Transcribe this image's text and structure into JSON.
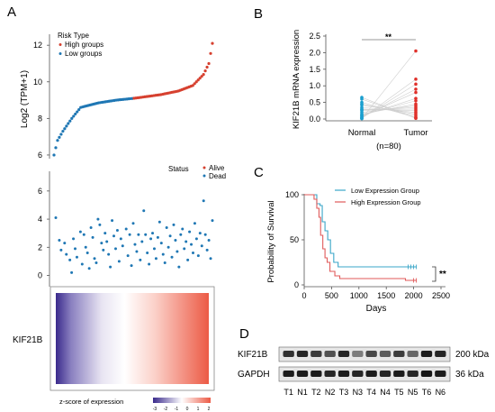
{
  "panels": {
    "A": "A",
    "B": "B",
    "C": "C",
    "D": "D"
  },
  "colors": {
    "high": "#d6402f",
    "low": "#1f77b4",
    "normal_dot": "#1a9fcf",
    "tumor_dot": "#e0302a",
    "heat_low": "#3a2a8c",
    "heat_mid": "#ffffff",
    "heat_high": "#ec5a45",
    "surv_low": "#3aa6c8",
    "surv_high": "#e05a5a"
  },
  "chart_data": [
    {
      "type": "scatter",
      "panel": "A-top",
      "ylabel": "Log2 (TPM+1)",
      "yticks": [
        6,
        8,
        10,
        12
      ],
      "ylim": [
        5.8,
        12.6
      ],
      "legend_title": "Risk Type",
      "legend": [
        "High groups",
        "Low groups"
      ],
      "n": 90,
      "split_index": 45,
      "anchors": [
        [
          0,
          6.0
        ],
        [
          2,
          6.8
        ],
        [
          5,
          7.3
        ],
        [
          10,
          8.0
        ],
        [
          15,
          8.6
        ],
        [
          25,
          8.85
        ],
        [
          35,
          9.0
        ],
        [
          45,
          9.1
        ],
        [
          60,
          9.3
        ],
        [
          70,
          9.5
        ],
        [
          78,
          9.8
        ],
        [
          84,
          10.4
        ],
        [
          87,
          11.0
        ],
        [
          89,
          12.1
        ]
      ]
    },
    {
      "type": "scatter",
      "panel": "A-middle",
      "legend_title": "Status",
      "legend": [
        "Alive",
        "Dead"
      ],
      "yticks": [
        0,
        2,
        4,
        6
      ],
      "ylim": [
        -0.8,
        7.4
      ],
      "points": [
        [
          0,
          4.1
        ],
        [
          2,
          2.5
        ],
        [
          3,
          1.8
        ],
        [
          5,
          2.3
        ],
        [
          6,
          1.5
        ],
        [
          8,
          1.1
        ],
        [
          9,
          0.2
        ],
        [
          10,
          2.6
        ],
        [
          11,
          1.9
        ],
        [
          12,
          1.3
        ],
        [
          14,
          3.1
        ],
        [
          15,
          0.8
        ],
        [
          16,
          2.9
        ],
        [
          17,
          2.0
        ],
        [
          18,
          1.6
        ],
        [
          19,
          0.5
        ],
        [
          20,
          3.4
        ],
        [
          21,
          2.7
        ],
        [
          22,
          1.2
        ],
        [
          23,
          0.9
        ],
        [
          24,
          4.0
        ],
        [
          25,
          3.6
        ],
        [
          26,
          2.3
        ],
        [
          27,
          1.8
        ],
        [
          28,
          3.0
        ],
        [
          29,
          2.4
        ],
        [
          30,
          1.5
        ],
        [
          31,
          0.6
        ],
        [
          32,
          3.9
        ],
        [
          33,
          2.8
        ],
        [
          34,
          1.9
        ],
        [
          35,
          3.2
        ],
        [
          36,
          1.0
        ],
        [
          37,
          2.6
        ],
        [
          38,
          2.1
        ],
        [
          40,
          3.3
        ],
        [
          41,
          1.4
        ],
        [
          42,
          2.9
        ],
        [
          43,
          0.7
        ],
        [
          44,
          3.7
        ],
        [
          45,
          2.2
        ],
        [
          46,
          1.7
        ],
        [
          47,
          2.9
        ],
        [
          48,
          1.1
        ],
        [
          49,
          2.4
        ],
        [
          50,
          4.6
        ],
        [
          51,
          2.9
        ],
        [
          52,
          1.6
        ],
        [
          53,
          0.8
        ],
        [
          54,
          2.6
        ],
        [
          55,
          3.0
        ],
        [
          56,
          1.9
        ],
        [
          57,
          1.2
        ],
        [
          58,
          2.7
        ],
        [
          59,
          3.8
        ],
        [
          60,
          2.3
        ],
        [
          61,
          1.5
        ],
        [
          62,
          0.9
        ],
        [
          63,
          3.4
        ],
        [
          64,
          2.0
        ],
        [
          65,
          2.8
        ],
        [
          66,
          1.3
        ],
        [
          67,
          3.6
        ],
        [
          68,
          2.5
        ],
        [
          69,
          1.7
        ],
        [
          70,
          0.6
        ],
        [
          71,
          2.9
        ],
        [
          72,
          3.3
        ],
        [
          73,
          1.9
        ],
        [
          74,
          2.4
        ],
        [
          75,
          1.1
        ],
        [
          76,
          3.1
        ],
        [
          77,
          2.2
        ],
        [
          78,
          1.6
        ],
        [
          79,
          3.7
        ],
        [
          80,
          2.6
        ],
        [
          81,
          1.4
        ],
        [
          82,
          3.0
        ],
        [
          83,
          2.1
        ],
        [
          84,
          5.3
        ],
        [
          85,
          2.9
        ],
        [
          86,
          1.8
        ],
        [
          87,
          2.5
        ],
        [
          88,
          1.2
        ],
        [
          89,
          3.9
        ]
      ]
    },
    {
      "type": "heatmap",
      "panel": "A-bottom",
      "row_label": "KIF21B",
      "colorbar_title": "z-score of expression",
      "colorbar_ticks": [
        "-3",
        "-2",
        "-1",
        "0",
        "1",
        "2"
      ]
    },
    {
      "type": "scatter",
      "panel": "B",
      "ylabel": "KIF21B mRNA expression",
      "categories": [
        "Normal",
        "Tumor"
      ],
      "xcaption": "(n=80)",
      "yticks": [
        "0.0",
        "0.5",
        "1.0",
        "1.5",
        "2.0",
        "2.5"
      ],
      "ylim": [
        0,
        2.5
      ],
      "significance": "**",
      "normal": [
        0.65,
        0.6,
        0.5,
        0.45,
        0.42,
        0.35,
        0.3,
        0.28,
        0.25,
        0.2,
        0.15,
        0.12,
        0.1,
        0.08,
        0.05,
        0.03,
        0.02,
        0.01
      ],
      "tumor": [
        2.05,
        1.2,
        1.05,
        0.9,
        0.8,
        0.62,
        0.55,
        0.45,
        0.4,
        0.35,
        0.3,
        0.25,
        0.2,
        0.15,
        0.1,
        0.05,
        0.03,
        0.02
      ]
    },
    {
      "type": "line",
      "panel": "C",
      "ylabel": "Probability of Survival",
      "xlabel": "Days",
      "xticks": [
        0,
        500,
        1000,
        1500,
        2000,
        2500
      ],
      "yticks": [
        0,
        50,
        100
      ],
      "xlim": [
        0,
        2500
      ],
      "ylim": [
        0,
        100
      ],
      "significance": "**",
      "series": [
        {
          "name": "Low Expression Group",
          "points": [
            [
              0,
              100
            ],
            [
              180,
              100
            ],
            [
              230,
              90
            ],
            [
              290,
              88
            ],
            [
              330,
              70
            ],
            [
              380,
              60
            ],
            [
              430,
              50
            ],
            [
              480,
              35
            ],
            [
              540,
              25
            ],
            [
              620,
              20
            ],
            [
              2050,
              20
            ]
          ],
          "censor": [
            1900,
            1950,
            2000,
            2050
          ]
        },
        {
          "name": "High Expression Group",
          "points": [
            [
              0,
              100
            ],
            [
              140,
              100
            ],
            [
              180,
              95
            ],
            [
              230,
              85
            ],
            [
              270,
              75
            ],
            [
              300,
              55
            ],
            [
              340,
              40
            ],
            [
              380,
              30
            ],
            [
              420,
              25
            ],
            [
              470,
              15
            ],
            [
              560,
              10
            ],
            [
              650,
              7
            ],
            [
              1800,
              7
            ],
            [
              1850,
              5
            ],
            [
              2050,
              5
            ]
          ],
          "censor": [
            2000,
            2050
          ]
        }
      ]
    },
    {
      "type": "table",
      "panel": "D",
      "rows": [
        {
          "name": "KIF21B",
          "size": "200 kDa"
        },
        {
          "name": "GAPDH",
          "size": "36 kDa"
        }
      ],
      "lanes": [
        "T1",
        "N1",
        "T2",
        "N2",
        "T3",
        "N3",
        "T4",
        "N4",
        "T5",
        "N5",
        "T6",
        "N6"
      ],
      "kif21b_intensity": [
        0.85,
        0.9,
        0.8,
        0.7,
        0.9,
        0.5,
        0.75,
        0.65,
        0.8,
        0.6,
        0.95,
        0.9
      ],
      "gapdh_intensity": [
        0.95,
        0.95,
        0.95,
        0.9,
        0.95,
        0.9,
        0.95,
        0.9,
        0.95,
        0.9,
        0.98,
        0.95
      ]
    }
  ]
}
